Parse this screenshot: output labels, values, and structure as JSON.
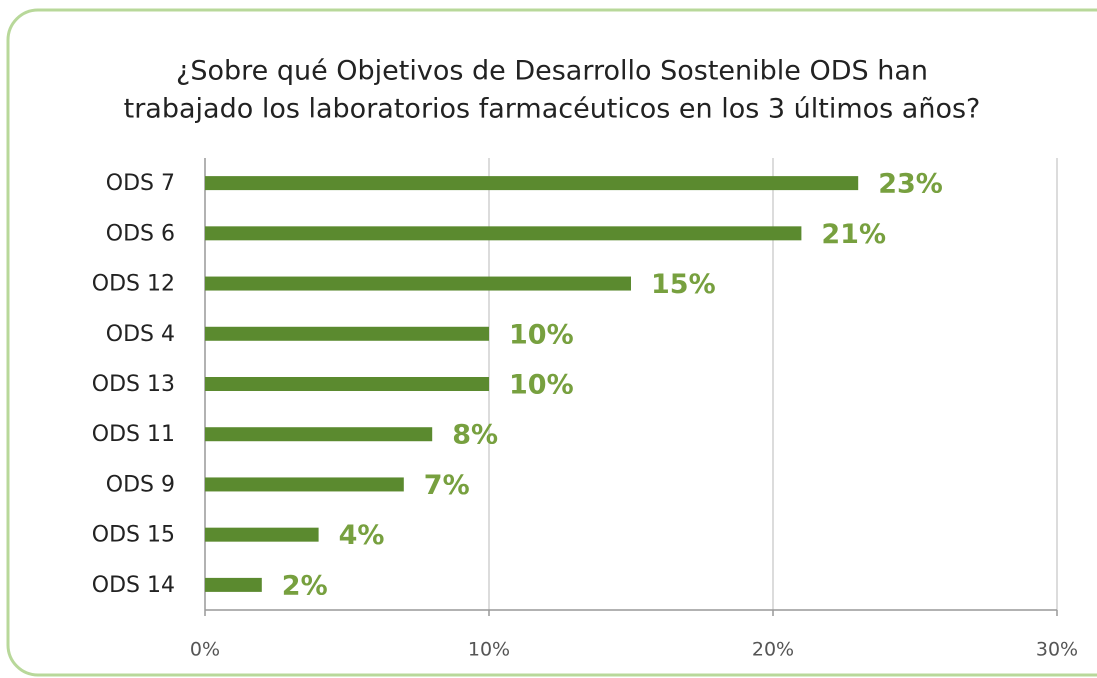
{
  "chart_data": {
    "type": "bar",
    "orientation": "horizontal",
    "title": [
      "¿Sobre qué Objetivos de Desarrollo Sostenible ODS han",
      "trabajado los laboratorios farmacéuticos en los 3 últimos años?"
    ],
    "categories": [
      "ODS 7",
      "ODS 6",
      "ODS 12",
      "ODS 4",
      "ODS 13",
      "ODS 11",
      "ODS 9",
      "ODS 15",
      "ODS 14"
    ],
    "values": [
      23,
      21,
      15,
      10,
      10,
      8,
      7,
      4,
      2
    ],
    "value_labels": [
      "23%",
      "21%",
      "15%",
      "10%",
      "10%",
      "8%",
      "7%",
      "4%",
      "2%"
    ],
    "color": "#5b8a2f",
    "label_color": "#77a03f",
    "xlim": [
      0,
      30
    ],
    "xticks": [
      {
        "value": 0,
        "label": "0%"
      },
      {
        "value": 10,
        "label": "10%"
      },
      {
        "value": 20,
        "label": "20%"
      },
      {
        "value": 30,
        "label": "30%"
      }
    ],
    "grid": true
  }
}
